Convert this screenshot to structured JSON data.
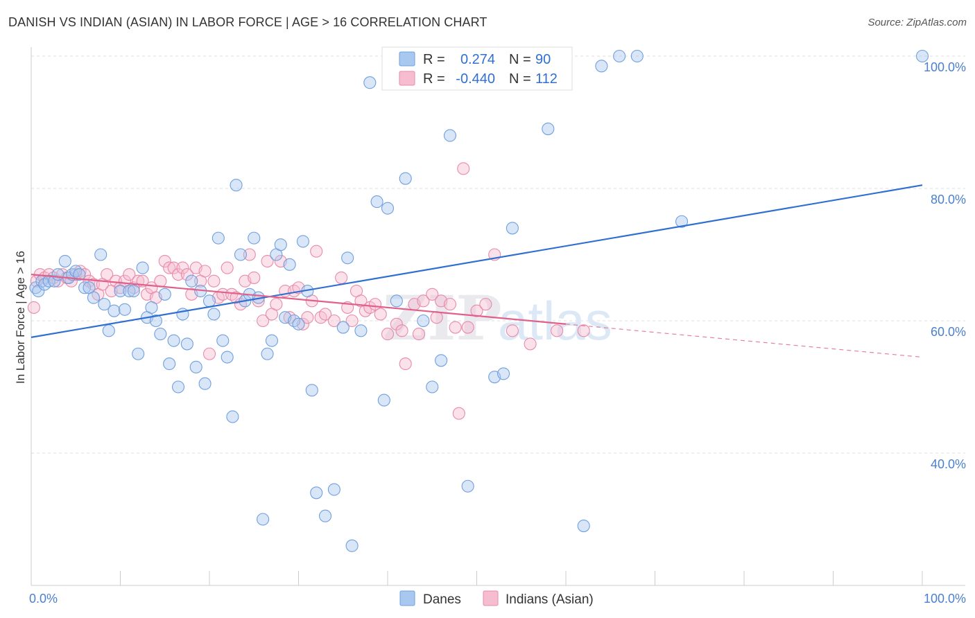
{
  "title": "DANISH VS INDIAN (ASIAN) IN LABOR FORCE | AGE > 16 CORRELATION CHART",
  "source": "Source: ZipAtlas.com",
  "colors": {
    "danes_fill": "#a9c8f0",
    "danes_stroke": "#6f9fdf",
    "danes_line": "#2f6fd1",
    "indians_fill": "#f6bcd0",
    "indians_stroke": "#e88aa8",
    "indians_line": "#e0608a",
    "tick_text": "#4a7fd0",
    "grid": "#dddddd"
  },
  "chart_data": {
    "type": "scatter",
    "xlabel": "",
    "ylabel": "In Labor Force | Age > 16",
    "xlim": [
      0,
      100
    ],
    "ylim": [
      20,
      102
    ],
    "x_ticks": [
      {
        "value": 0,
        "label": "0.0%"
      },
      {
        "value": 100,
        "label": "100.0%"
      }
    ],
    "y_ticks": [
      {
        "value": 40,
        "label": "40.0%"
      },
      {
        "value": 60,
        "label": "60.0%"
      },
      {
        "value": 80,
        "label": "80.0%"
      },
      {
        "value": 100,
        "label": "100.0%"
      }
    ],
    "grid": "horizontal dashed",
    "legend_position": "top-center",
    "stats": [
      {
        "series": "Danes",
        "r_label": "R =",
        "r": "0.274",
        "n_label": "N =",
        "n": "90"
      },
      {
        "series": "Indians (Asian)",
        "r_label": "R =",
        "r": "-0.440",
        "n_label": "N =",
        "n": "112"
      }
    ],
    "watermark": "ZIPatlas",
    "series": [
      {
        "name": "Danes",
        "trend": {
          "x": [
            0,
            100
          ],
          "y": [
            57.5,
            80.5
          ]
        },
        "points": [
          [
            0.5,
            65
          ],
          [
            0.8,
            64.5
          ],
          [
            1.2,
            66
          ],
          [
            1.5,
            65.5
          ],
          [
            2,
            66
          ],
          [
            2.6,
            66
          ],
          [
            3,
            67
          ],
          [
            3.8,
            69
          ],
          [
            4.2,
            66.5
          ],
          [
            4.6,
            67
          ],
          [
            5,
            67.5
          ],
          [
            5.4,
            67
          ],
          [
            6,
            65
          ],
          [
            6.5,
            65
          ],
          [
            7,
            63.5
          ],
          [
            7.8,
            70
          ],
          [
            8.2,
            62.5
          ],
          [
            8.7,
            58.5
          ],
          [
            9.3,
            61.5
          ],
          [
            10,
            64.5
          ],
          [
            10.5,
            61.7
          ],
          [
            11,
            64.5
          ],
          [
            11.5,
            64.5
          ],
          [
            12,
            55
          ],
          [
            12.5,
            68
          ],
          [
            13,
            60.5
          ],
          [
            13.5,
            62
          ],
          [
            14,
            60
          ],
          [
            14.5,
            58
          ],
          [
            15,
            64
          ],
          [
            15.5,
            53.5
          ],
          [
            16,
            57
          ],
          [
            16.5,
            50
          ],
          [
            17,
            61
          ],
          [
            17.5,
            56.5
          ],
          [
            18,
            66
          ],
          [
            18.5,
            53
          ],
          [
            19,
            64.5
          ],
          [
            19.5,
            50.5
          ],
          [
            20,
            63
          ],
          [
            20.5,
            61
          ],
          [
            21,
            72.5
          ],
          [
            21.5,
            57
          ],
          [
            22,
            54.5
          ],
          [
            22.6,
            45.5
          ],
          [
            23,
            80.5
          ],
          [
            23.5,
            70
          ],
          [
            24,
            63
          ],
          [
            24.5,
            64
          ],
          [
            25,
            72.5
          ],
          [
            25.5,
            63.5
          ],
          [
            26,
            30
          ],
          [
            26.5,
            55
          ],
          [
            27,
            57
          ],
          [
            27.5,
            70
          ],
          [
            28,
            71.5
          ],
          [
            28.5,
            60.5
          ],
          [
            29,
            68.5
          ],
          [
            29.5,
            60
          ],
          [
            30,
            59.5
          ],
          [
            30.5,
            72
          ],
          [
            31,
            64.5
          ],
          [
            31.5,
            49.5
          ],
          [
            32,
            34
          ],
          [
            33,
            30.5
          ],
          [
            34,
            34.5
          ],
          [
            35,
            59
          ],
          [
            35.5,
            69.5
          ],
          [
            36,
            26
          ],
          [
            37,
            58.5
          ],
          [
            38,
            96
          ],
          [
            38.8,
            78
          ],
          [
            39.6,
            48
          ],
          [
            40,
            77
          ],
          [
            41,
            63
          ],
          [
            42,
            81.5
          ],
          [
            44,
            60
          ],
          [
            45,
            50
          ],
          [
            46,
            54
          ],
          [
            47,
            88
          ],
          [
            49,
            35
          ],
          [
            52,
            51.5
          ],
          [
            53,
            52
          ],
          [
            54,
            74
          ],
          [
            58,
            89
          ],
          [
            62,
            29
          ],
          [
            64,
            98.5
          ],
          [
            66,
            100
          ],
          [
            68,
            100
          ],
          [
            73,
            75
          ],
          [
            100,
            100
          ]
        ]
      },
      {
        "name": "Indians (Asian)",
        "trend": {
          "x": [
            0,
            60
          ],
          "y": [
            67,
            59.5
          ]
        },
        "trend_extension": {
          "x": [
            60,
            100
          ],
          "y": [
            59.5,
            54.5
          ]
        },
        "points": [
          [
            0.3,
            62
          ],
          [
            0.6,
            66
          ],
          [
            1,
            67
          ],
          [
            1.5,
            66.5
          ],
          [
            2,
            67
          ],
          [
            2.5,
            66.5
          ],
          [
            3,
            66
          ],
          [
            3.5,
            67
          ],
          [
            4,
            66.5
          ],
          [
            4.5,
            66
          ],
          [
            5,
            67
          ],
          [
            5.5,
            67.5
          ],
          [
            6,
            67
          ],
          [
            6.5,
            66
          ],
          [
            7,
            65.5
          ],
          [
            7.5,
            64
          ],
          [
            8,
            65.5
          ],
          [
            8.5,
            67
          ],
          [
            9,
            64.5
          ],
          [
            9.5,
            66
          ],
          [
            10,
            65
          ],
          [
            10.5,
            66
          ],
          [
            11,
            67
          ],
          [
            11.5,
            65
          ],
          [
            12,
            66
          ],
          [
            12.5,
            66
          ],
          [
            13,
            64
          ],
          [
            13.5,
            65
          ],
          [
            14,
            63.5
          ],
          [
            14.5,
            66
          ],
          [
            15,
            69
          ],
          [
            15.5,
            68
          ],
          [
            16,
            68
          ],
          [
            16.5,
            67
          ],
          [
            17,
            68
          ],
          [
            17.5,
            67
          ],
          [
            18,
            64
          ],
          [
            18.5,
            68
          ],
          [
            19,
            66
          ],
          [
            19.5,
            67.5
          ],
          [
            20,
            55
          ],
          [
            20.5,
            66
          ],
          [
            21,
            63.5
          ],
          [
            21.5,
            64
          ],
          [
            22,
            68
          ],
          [
            22.5,
            64
          ],
          [
            23,
            63.5
          ],
          [
            23.5,
            62.5
          ],
          [
            24,
            66
          ],
          [
            24.5,
            70
          ],
          [
            25,
            66.5
          ],
          [
            25.5,
            63
          ],
          [
            26,
            60
          ],
          [
            26.5,
            69
          ],
          [
            27,
            61
          ],
          [
            27.5,
            62.5
          ],
          [
            28,
            69
          ],
          [
            28.5,
            64.5
          ],
          [
            29,
            60.5
          ],
          [
            29.5,
            64.5
          ],
          [
            30,
            65
          ],
          [
            30.5,
            59.5
          ],
          [
            31,
            60.5
          ],
          [
            31.5,
            63
          ],
          [
            32,
            70.5
          ],
          [
            32.5,
            60.5
          ],
          [
            33,
            61
          ],
          [
            34,
            60
          ],
          [
            34.8,
            66.5
          ],
          [
            35.5,
            62
          ],
          [
            36,
            60
          ],
          [
            36.5,
            64.5
          ],
          [
            37,
            63
          ],
          [
            37.5,
            61.5
          ],
          [
            38,
            62
          ],
          [
            38.6,
            62.5
          ],
          [
            39.2,
            61
          ],
          [
            40,
            58
          ],
          [
            41,
            59.5
          ],
          [
            41.6,
            58.5
          ],
          [
            42,
            53.5
          ],
          [
            43,
            62.5
          ],
          [
            43.5,
            58
          ],
          [
            44,
            63
          ],
          [
            45,
            64
          ],
          [
            45.5,
            60.5
          ],
          [
            46,
            63
          ],
          [
            47,
            62.5
          ],
          [
            47.6,
            59
          ],
          [
            48,
            46
          ],
          [
            48.5,
            83
          ],
          [
            49,
            59
          ],
          [
            50,
            61.5
          ],
          [
            51,
            62.5
          ],
          [
            52,
            70
          ],
          [
            54,
            58.5
          ],
          [
            56,
            56.5
          ],
          [
            59,
            58.5
          ],
          [
            62,
            58.5
          ]
        ]
      }
    ],
    "bottom_legend": [
      "Danes",
      "Indians (Asian)"
    ]
  }
}
